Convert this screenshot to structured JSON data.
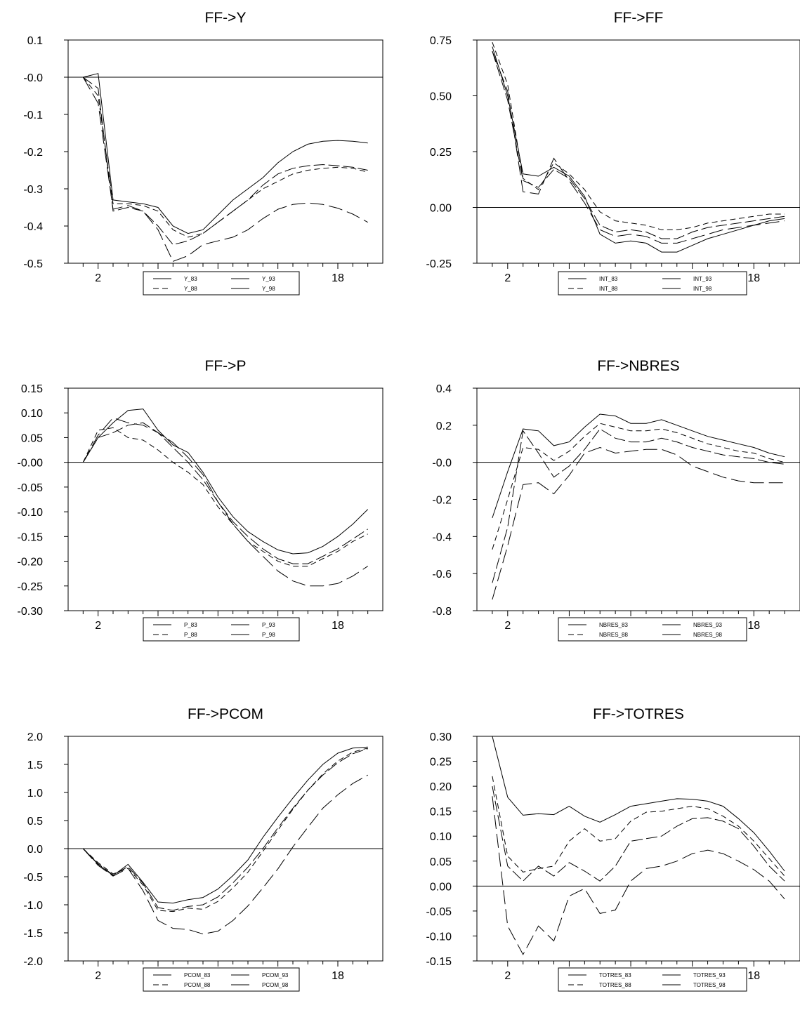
{
  "chart_data": [
    {
      "type": "line",
      "title": "FF->Y",
      "xlabel": "",
      "ylabel": "",
      "xlim": [
        0,
        21
      ],
      "ylim": [
        -0.5,
        0.1
      ],
      "x_ticks": [
        2,
        6,
        10,
        14,
        18
      ],
      "y_ticks": [
        0.1,
        0.0,
        -0.1,
        -0.2,
        -0.3,
        -0.4,
        -0.5
      ],
      "y_tick_labels": [
        "0.1",
        "-0.0",
        "-0.1",
        "-0.2",
        "-0.3",
        "-0.4",
        "-0.5"
      ],
      "zero_line": true,
      "legend": "bottom",
      "x": [
        1,
        2,
        3,
        4,
        5,
        6,
        7,
        8,
        9,
        10,
        11,
        12,
        13,
        14,
        15,
        16,
        17,
        18,
        19,
        20
      ],
      "series": [
        {
          "name": "Y_83",
          "style": "solid",
          "values": [
            0.0,
            0.01,
            -0.33,
            -0.335,
            -0.34,
            -0.35,
            -0.4,
            -0.42,
            -0.41,
            -0.37,
            -0.33,
            -0.3,
            -0.27,
            -0.23,
            -0.2,
            -0.18,
            -0.172,
            -0.17,
            -0.172,
            -0.177
          ]
        },
        {
          "name": "Y_88",
          "style": "dashed",
          "values": [
            0.0,
            -0.05,
            -0.34,
            -0.34,
            -0.345,
            -0.36,
            -0.41,
            -0.43,
            -0.42,
            -0.39,
            -0.36,
            -0.33,
            -0.3,
            -0.28,
            -0.26,
            -0.25,
            -0.245,
            -0.242,
            -0.245,
            -0.255
          ]
        },
        {
          "name": "Y_93",
          "style": "longdash",
          "values": [
            0.0,
            -0.03,
            -0.36,
            -0.35,
            -0.36,
            -0.4,
            -0.45,
            -0.44,
            -0.42,
            -0.39,
            -0.36,
            -0.33,
            -0.29,
            -0.26,
            -0.245,
            -0.238,
            -0.235,
            -0.238,
            -0.242,
            -0.25
          ]
        },
        {
          "name": "Y_98",
          "style": "longdash2",
          "values": [
            0.0,
            -0.07,
            -0.355,
            -0.345,
            -0.36,
            -0.41,
            -0.495,
            -0.48,
            -0.45,
            -0.44,
            -0.43,
            -0.41,
            -0.38,
            -0.355,
            -0.342,
            -0.338,
            -0.342,
            -0.352,
            -0.368,
            -0.39
          ]
        }
      ]
    },
    {
      "type": "line",
      "title": "FF->FF",
      "xlabel": "",
      "ylabel": "",
      "xlim": [
        0,
        21
      ],
      "ylim": [
        -0.25,
        0.75
      ],
      "x_ticks": [
        2,
        6,
        10,
        14,
        18
      ],
      "y_ticks": [
        0.75,
        0.5,
        0.25,
        0.0,
        -0.25
      ],
      "y_tick_labels": [
        "0.75",
        "0.50",
        "0.25",
        "0.00",
        "-0.25"
      ],
      "zero_line": true,
      "legend": "bottom",
      "x": [
        1,
        2,
        3,
        4,
        5,
        6,
        7,
        8,
        9,
        10,
        11,
        12,
        13,
        14,
        15,
        16,
        17,
        18,
        19,
        20
      ],
      "series": [
        {
          "name": "INT_83",
          "style": "solid",
          "values": [
            0.72,
            0.5,
            0.15,
            0.14,
            0.18,
            0.14,
            0.05,
            -0.12,
            -0.16,
            -0.15,
            -0.16,
            -0.2,
            -0.2,
            -0.17,
            -0.14,
            -0.12,
            -0.1,
            -0.08,
            -0.06,
            -0.05
          ]
        },
        {
          "name": "INT_88",
          "style": "dashed",
          "values": [
            0.74,
            0.55,
            0.13,
            0.08,
            0.2,
            0.15,
            0.08,
            -0.02,
            -0.06,
            -0.07,
            -0.08,
            -0.1,
            -0.1,
            -0.09,
            -0.07,
            -0.06,
            -0.05,
            -0.04,
            -0.03,
            -0.03
          ]
        },
        {
          "name": "INT_93",
          "style": "longdash",
          "values": [
            0.7,
            0.48,
            0.12,
            0.09,
            0.17,
            0.13,
            0.04,
            -0.08,
            -0.11,
            -0.1,
            -0.11,
            -0.14,
            -0.14,
            -0.11,
            -0.09,
            -0.08,
            -0.07,
            -0.06,
            -0.05,
            -0.04
          ]
        },
        {
          "name": "INT_98",
          "style": "longdash2",
          "values": [
            0.7,
            0.52,
            0.07,
            0.06,
            0.22,
            0.12,
            0.02,
            -0.1,
            -0.13,
            -0.12,
            -0.13,
            -0.16,
            -0.16,
            -0.14,
            -0.12,
            -0.1,
            -0.09,
            -0.08,
            -0.07,
            -0.06
          ]
        }
      ]
    },
    {
      "type": "line",
      "title": "FF->P",
      "xlabel": "",
      "ylabel": "",
      "xlim": [
        0,
        21
      ],
      "ylim": [
        -0.3,
        0.15
      ],
      "x_ticks": [
        2,
        6,
        10,
        14,
        18
      ],
      "y_ticks": [
        0.15,
        0.1,
        0.05,
        0.0,
        -0.05,
        -0.1,
        -0.15,
        -0.2,
        -0.25,
        -0.3
      ],
      "y_tick_labels": [
        "0.15",
        "0.10",
        "0.05",
        "-0.00",
        "-0.05",
        "-0.10",
        "-0.15",
        "-0.20",
        "-0.25",
        "-0.30"
      ],
      "zero_line": true,
      "legend": "bottom",
      "x": [
        1,
        2,
        3,
        4,
        5,
        6,
        7,
        8,
        9,
        10,
        11,
        12,
        13,
        14,
        15,
        16,
        17,
        18,
        19,
        20
      ],
      "series": [
        {
          "name": "P_83",
          "style": "solid",
          "values": [
            0.0,
            0.05,
            0.08,
            0.105,
            0.108,
            0.065,
            0.035,
            0.02,
            -0.02,
            -0.07,
            -0.11,
            -0.14,
            -0.16,
            -0.177,
            -0.185,
            -0.183,
            -0.17,
            -0.15,
            -0.125,
            -0.095
          ]
        },
        {
          "name": "P_88",
          "style": "dashed",
          "values": [
            0.0,
            0.065,
            0.07,
            0.05,
            0.045,
            0.025,
            0.0,
            -0.02,
            -0.045,
            -0.09,
            -0.125,
            -0.16,
            -0.18,
            -0.2,
            -0.21,
            -0.21,
            -0.195,
            -0.18,
            -0.16,
            -0.145
          ]
        },
        {
          "name": "P_93",
          "style": "longdash",
          "values": [
            0.0,
            0.05,
            0.06,
            0.075,
            0.08,
            0.06,
            0.03,
            0.0,
            -0.035,
            -0.08,
            -0.12,
            -0.15,
            -0.175,
            -0.195,
            -0.205,
            -0.205,
            -0.19,
            -0.175,
            -0.155,
            -0.135
          ]
        },
        {
          "name": "P_98",
          "style": "longdash2",
          "values": [
            0.0,
            0.055,
            0.09,
            0.08,
            0.075,
            0.06,
            0.04,
            0.01,
            -0.025,
            -0.08,
            -0.125,
            -0.16,
            -0.19,
            -0.22,
            -0.24,
            -0.25,
            -0.25,
            -0.245,
            -0.23,
            -0.21
          ]
        }
      ]
    },
    {
      "type": "line",
      "title": "FF->NBRES",
      "xlabel": "",
      "ylabel": "",
      "xlim": [
        0,
        21
      ],
      "ylim": [
        -0.8,
        0.4
      ],
      "x_ticks": [
        2,
        6,
        10,
        14,
        18
      ],
      "y_ticks": [
        0.4,
        0.2,
        0.0,
        -0.2,
        -0.4,
        -0.6,
        -0.8
      ],
      "y_tick_labels": [
        "0.4",
        "0.2",
        "-0.0",
        "-0.2",
        "-0.4",
        "-0.6",
        "-0.8"
      ],
      "zero_line": true,
      "legend": "bottom",
      "x": [
        1,
        2,
        3,
        4,
        5,
        6,
        7,
        8,
        9,
        10,
        11,
        12,
        13,
        14,
        15,
        16,
        17,
        18,
        19,
        20
      ],
      "series": [
        {
          "name": "NBRES_83",
          "style": "solid",
          "values": [
            -0.3,
            -0.05,
            0.18,
            0.17,
            0.09,
            0.11,
            0.19,
            0.26,
            0.25,
            0.21,
            0.21,
            0.23,
            0.2,
            0.17,
            0.14,
            0.12,
            0.1,
            0.08,
            0.05,
            0.03
          ]
        },
        {
          "name": "NBRES_88",
          "style": "dashed",
          "values": [
            -0.47,
            -0.2,
            0.08,
            0.07,
            0.01,
            0.06,
            0.14,
            0.21,
            0.19,
            0.17,
            0.17,
            0.18,
            0.16,
            0.13,
            0.1,
            0.08,
            0.06,
            0.05,
            0.02,
            0.0
          ]
        },
        {
          "name": "NBRES_93",
          "style": "longdash",
          "values": [
            -0.65,
            -0.35,
            0.17,
            0.05,
            -0.08,
            -0.02,
            0.07,
            0.18,
            0.13,
            0.11,
            0.11,
            0.13,
            0.11,
            0.08,
            0.06,
            0.04,
            0.03,
            0.02,
            0.0,
            -0.01
          ]
        },
        {
          "name": "NBRES_98",
          "style": "longdash2",
          "values": [
            -0.74,
            -0.45,
            -0.12,
            -0.11,
            -0.17,
            -0.07,
            0.05,
            0.08,
            0.05,
            0.06,
            0.07,
            0.07,
            0.04,
            -0.02,
            -0.05,
            -0.08,
            -0.1,
            -0.11,
            -0.11,
            -0.11
          ]
        }
      ]
    },
    {
      "type": "line",
      "title": "FF->PCOM",
      "xlabel": "",
      "ylabel": "",
      "xlim": [
        0,
        21
      ],
      "ylim": [
        -2.0,
        2.0
      ],
      "x_ticks": [
        2,
        6,
        10,
        14,
        18
      ],
      "y_ticks": [
        2.0,
        1.5,
        1.0,
        0.5,
        0.0,
        -0.5,
        -1.0,
        -1.5,
        -2.0
      ],
      "y_tick_labels": [
        "2.0",
        "1.5",
        "1.0",
        "0.5",
        "0.0",
        "-0.5",
        "-1.0",
        "-1.5",
        "-2.0"
      ],
      "zero_line": true,
      "legend": "bottom",
      "x": [
        1,
        2,
        3,
        4,
        5,
        6,
        7,
        8,
        9,
        10,
        11,
        12,
        13,
        14,
        15,
        16,
        17,
        18,
        19,
        20
      ],
      "series": [
        {
          "name": "PCOM_83",
          "style": "solid",
          "values": [
            0.0,
            -0.28,
            -0.48,
            -0.28,
            -0.6,
            -0.95,
            -0.97,
            -0.91,
            -0.87,
            -0.72,
            -0.48,
            -0.2,
            0.2,
            0.56,
            0.9,
            1.22,
            1.5,
            1.7,
            1.79,
            1.81
          ]
        },
        {
          "name": "PCOM_88",
          "style": "dashed",
          "values": [
            0.0,
            -0.25,
            -0.45,
            -0.35,
            -0.65,
            -1.1,
            -1.12,
            -1.06,
            -1.08,
            -0.94,
            -0.7,
            -0.42,
            -0.05,
            0.33,
            0.7,
            1.04,
            1.33,
            1.56,
            1.72,
            1.79
          ]
        },
        {
          "name": "PCOM_93",
          "style": "longdash",
          "values": [
            0.0,
            -0.27,
            -0.47,
            -0.32,
            -0.62,
            -1.05,
            -1.1,
            -1.03,
            -1.0,
            -0.86,
            -0.61,
            -0.33,
            0.0,
            0.37,
            0.72,
            1.04,
            1.31,
            1.53,
            1.69,
            1.78
          ]
        },
        {
          "name": "PCOM_98",
          "style": "longdash2",
          "values": [
            0.0,
            -0.3,
            -0.49,
            -0.35,
            -0.75,
            -1.28,
            -1.42,
            -1.44,
            -1.52,
            -1.47,
            -1.28,
            -1.02,
            -0.7,
            -0.36,
            0.03,
            0.38,
            0.72,
            0.96,
            1.16,
            1.31
          ]
        }
      ]
    },
    {
      "type": "line",
      "title": "FF->TOTRES",
      "xlabel": "",
      "ylabel": "",
      "xlim": [
        0,
        21
      ],
      "ylim": [
        -0.15,
        0.3
      ],
      "x_ticks": [
        2,
        6,
        10,
        14,
        18
      ],
      "y_ticks": [
        0.3,
        0.25,
        0.2,
        0.15,
        0.1,
        0.05,
        0.0,
        -0.05,
        -0.1,
        -0.15
      ],
      "y_tick_labels": [
        "0.30",
        "0.25",
        "0.20",
        "0.15",
        "0.10",
        "0.05",
        "0.00",
        "-0.05",
        "-0.10",
        "-0.15"
      ],
      "zero_line": true,
      "legend": "bottom",
      "x": [
        1,
        2,
        3,
        4,
        5,
        6,
        7,
        8,
        9,
        10,
        11,
        12,
        13,
        14,
        15,
        16,
        17,
        18,
        19,
        20
      ],
      "series": [
        {
          "name": "TOTRES_83",
          "style": "solid",
          "values": [
            0.3,
            0.178,
            0.142,
            0.145,
            0.143,
            0.16,
            0.14,
            0.128,
            0.143,
            0.16,
            0.165,
            0.17,
            0.175,
            0.174,
            0.17,
            0.16,
            0.135,
            0.107,
            0.07,
            0.03
          ]
        },
        {
          "name": "TOTRES_88",
          "style": "dashed",
          "values": [
            0.22,
            0.06,
            0.028,
            0.035,
            0.04,
            0.09,
            0.115,
            0.09,
            0.095,
            0.13,
            0.148,
            0.15,
            0.155,
            0.16,
            0.155,
            0.14,
            0.12,
            0.09,
            0.055,
            0.02
          ]
        },
        {
          "name": "TOTRES_93",
          "style": "longdash",
          "values": [
            0.2,
            0.04,
            0.01,
            0.04,
            0.02,
            0.047,
            0.03,
            0.01,
            0.04,
            0.09,
            0.095,
            0.1,
            0.12,
            0.135,
            0.137,
            0.13,
            0.115,
            0.08,
            0.04,
            0.01
          ]
        },
        {
          "name": "TOTRES_98",
          "style": "longdash2",
          "values": [
            0.18,
            -0.08,
            -0.137,
            -0.08,
            -0.11,
            -0.02,
            -0.005,
            -0.055,
            -0.048,
            0.01,
            0.035,
            0.04,
            0.05,
            0.065,
            0.072,
            0.065,
            0.05,
            0.033,
            0.01,
            -0.026
          ]
        }
      ]
    }
  ]
}
